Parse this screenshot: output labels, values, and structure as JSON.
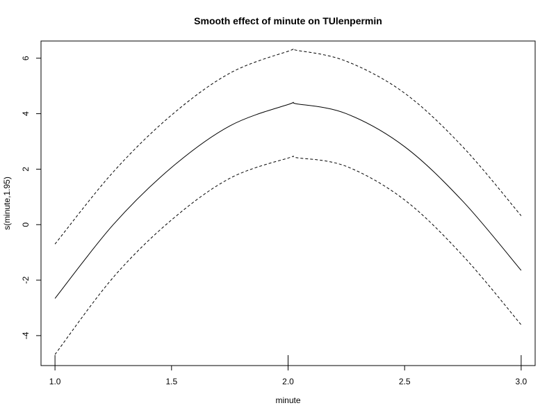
{
  "chart_data": {
    "type": "line",
    "title": "Smooth effect of minute on TUlenpermin",
    "xlabel": "minute",
    "ylabel": "s(minute,1.95)",
    "xlim": [
      0.94,
      3.06
    ],
    "ylim": [
      -5.08,
      6.62
    ],
    "x_ticks": [
      1.0,
      1.5,
      2.0,
      2.5,
      3.0
    ],
    "x_tick_labels": [
      "1.0",
      "1.5",
      "2.0",
      "2.5",
      "3.0"
    ],
    "y_ticks": [
      -4,
      -2,
      0,
      2,
      4,
      6
    ],
    "y_tick_labels": [
      "-4",
      "-2",
      "0",
      "2",
      "4",
      "6"
    ],
    "rug": [
      1.0,
      2.0,
      3.0
    ],
    "grid": false,
    "series": [
      {
        "style": "solid",
        "x": [
          1.0,
          1.25,
          1.5,
          1.75,
          2.0,
          2.04,
          2.25,
          2.5,
          2.75,
          3.0
        ],
        "y": [
          -2.66,
          0.0,
          2.06,
          3.56,
          4.33,
          4.35,
          4.0,
          2.81,
          0.84,
          -1.65
        ]
      },
      {
        "style": "dashed",
        "x": [
          1.0,
          1.25,
          1.5,
          1.75,
          2.0,
          2.04,
          2.25,
          2.5,
          2.75,
          3.0
        ],
        "y": [
          -0.7,
          1.9,
          3.95,
          5.46,
          6.25,
          6.28,
          5.89,
          4.74,
          2.8,
          0.32
        ]
      },
      {
        "style": "dashed",
        "x": [
          1.0,
          1.25,
          1.5,
          1.75,
          2.0,
          2.04,
          2.25,
          2.5,
          2.75,
          3.0
        ],
        "y": [
          -4.68,
          -1.9,
          0.17,
          1.67,
          2.4,
          2.41,
          2.1,
          0.89,
          -1.12,
          -3.61
        ]
      }
    ]
  }
}
